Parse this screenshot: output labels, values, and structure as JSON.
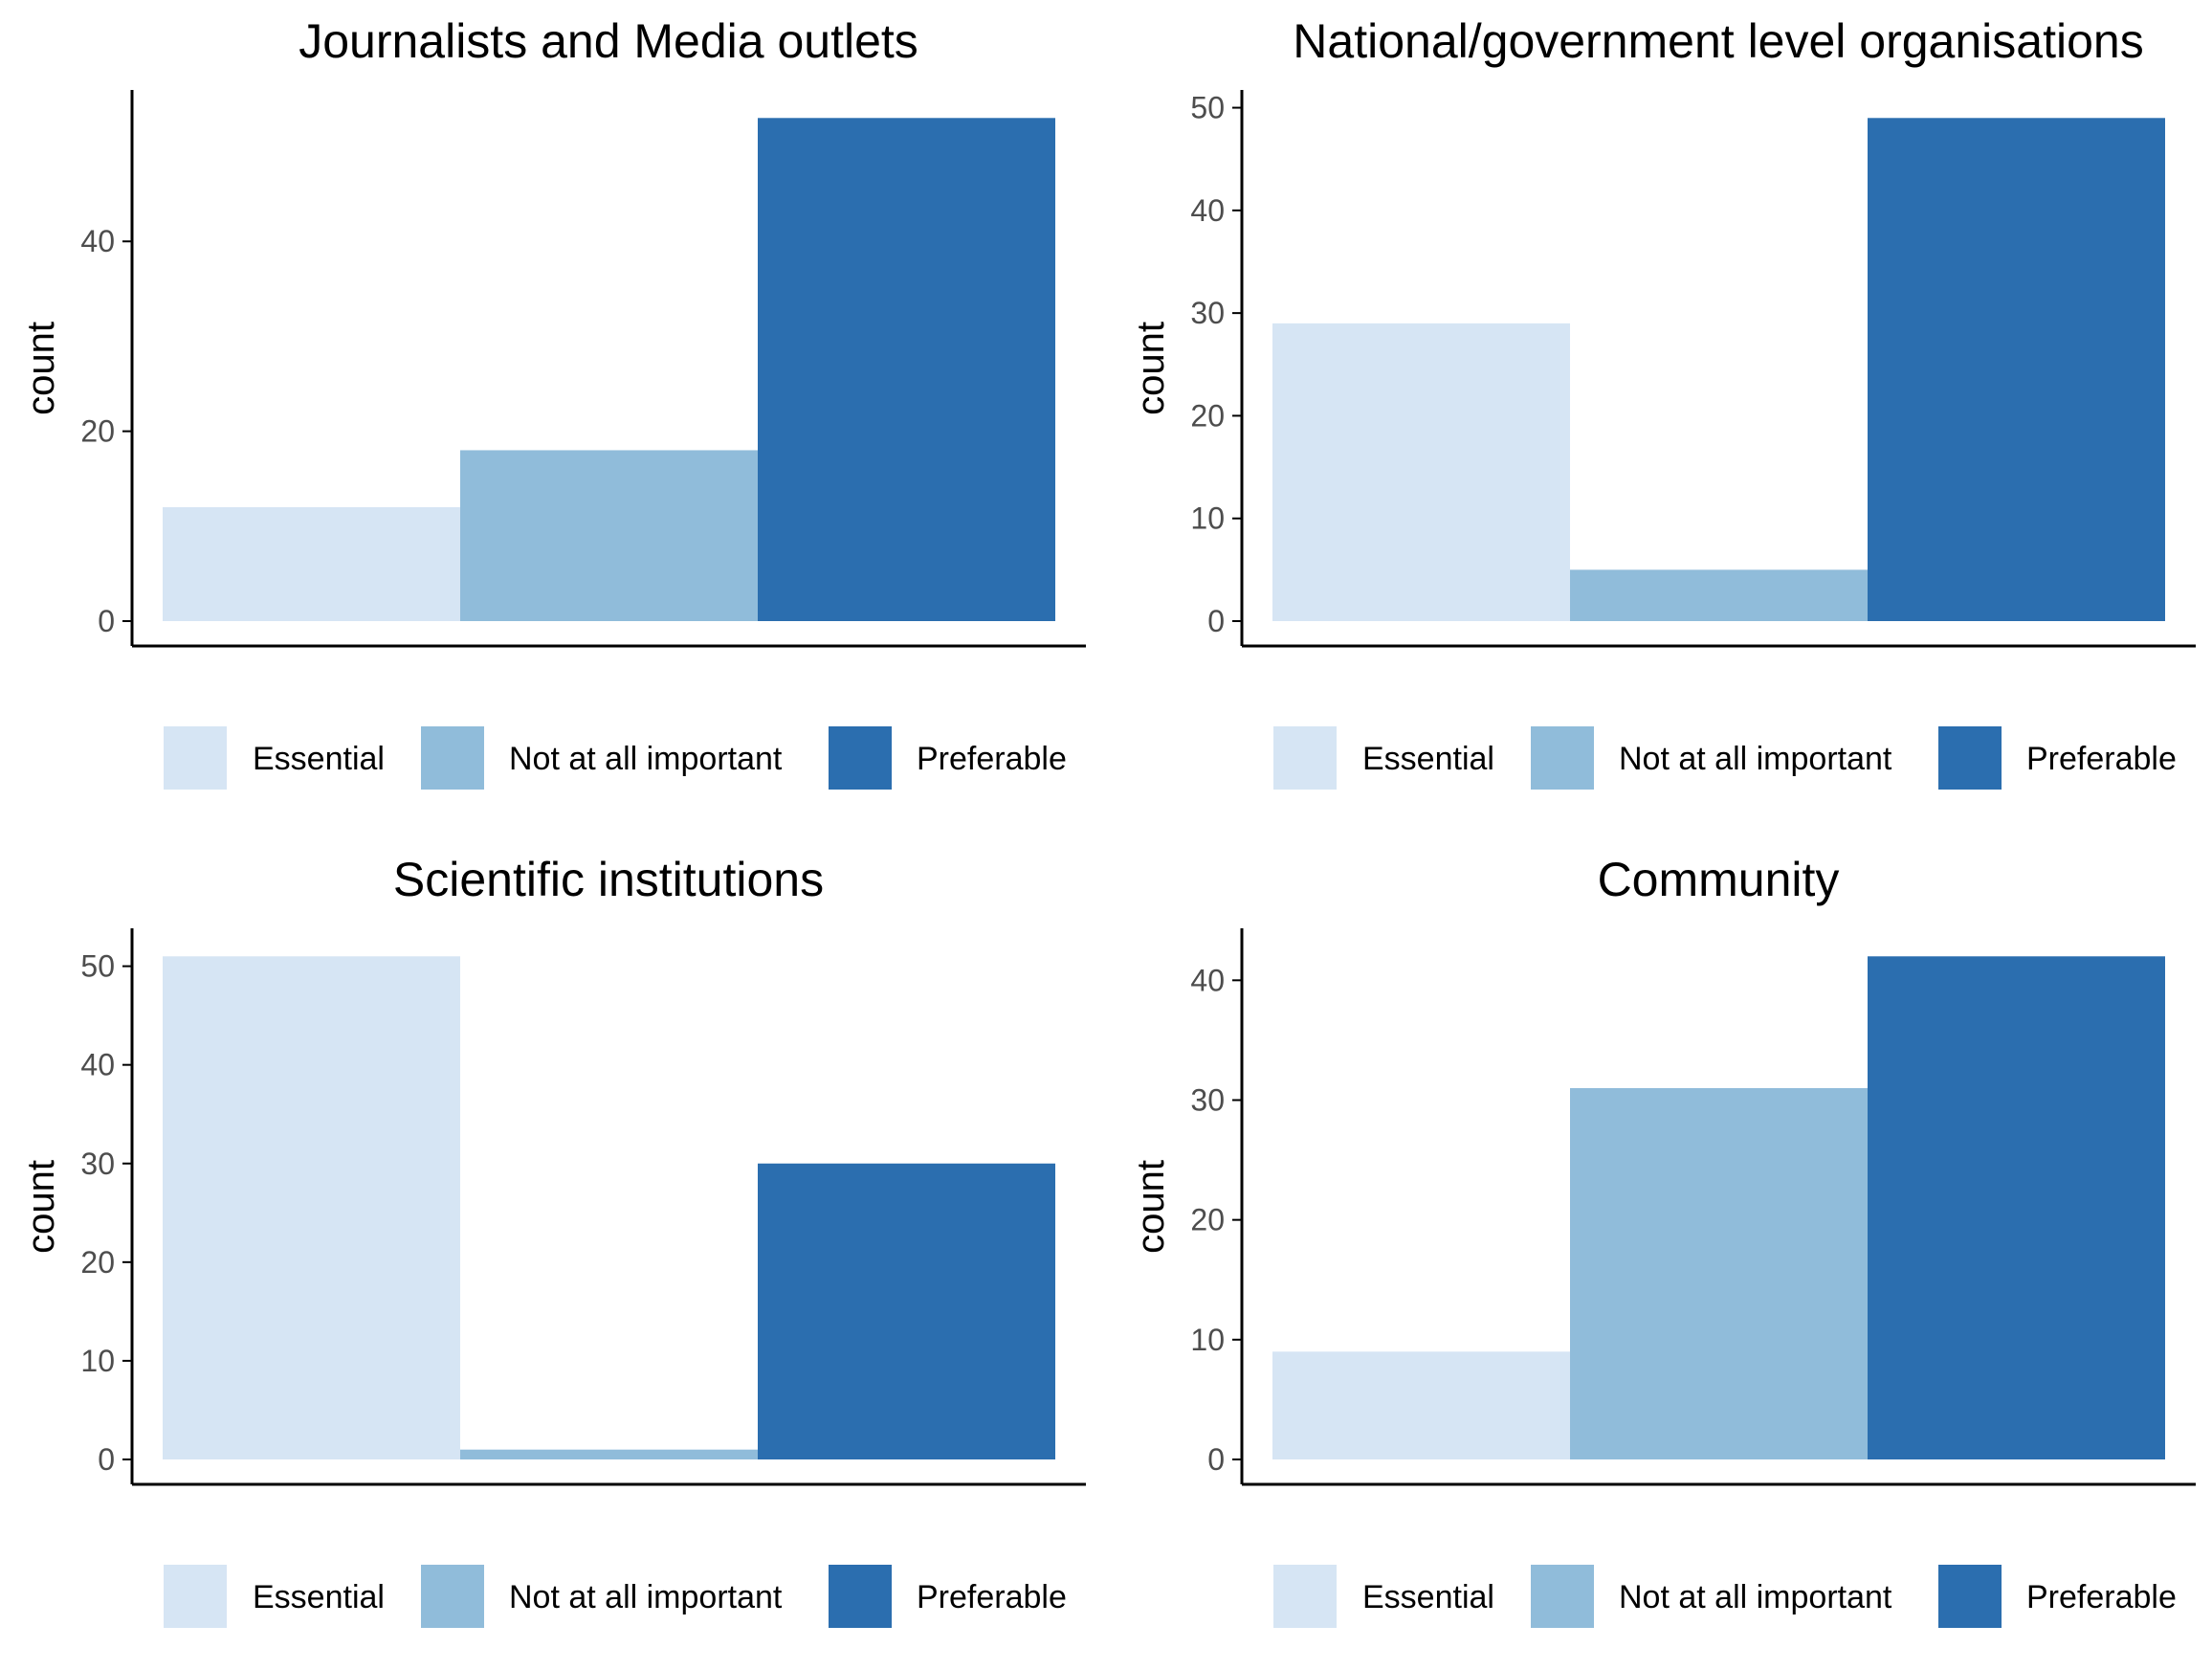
{
  "chart_data": [
    {
      "type": "bar",
      "title": "Journalists and Media outlets",
      "ylabel": "count",
      "xlabel": "",
      "categories": [
        "Essential",
        "Not at all important",
        "Preferable"
      ],
      "values": [
        12,
        18,
        53
      ],
      "ylim": [
        0,
        55.65
      ],
      "yticks": [
        0,
        20,
        40
      ],
      "grid": false,
      "legend_position": "bottom"
    },
    {
      "type": "bar",
      "title": "National/government level organisations",
      "ylabel": "count",
      "xlabel": "",
      "categories": [
        "Essential",
        "Not at all important",
        "Preferable"
      ],
      "values": [
        29,
        5,
        49
      ],
      "ylim": [
        0,
        51.45
      ],
      "yticks": [
        0,
        10,
        20,
        30,
        40,
        50
      ],
      "grid": false,
      "legend_position": "bottom"
    },
    {
      "type": "bar",
      "title": "Scientific institutions",
      "ylabel": "count",
      "xlabel": "",
      "categories": [
        "Essential",
        "Not at all important",
        "Preferable"
      ],
      "values": [
        51,
        1,
        30
      ],
      "ylim": [
        0,
        53.55
      ],
      "yticks": [
        0,
        10,
        20,
        30,
        40,
        50
      ],
      "grid": false,
      "legend_position": "bottom"
    },
    {
      "type": "bar",
      "title": "Community",
      "ylabel": "count",
      "xlabel": "",
      "categories": [
        "Essential",
        "Not at all important",
        "Preferable"
      ],
      "values": [
        9,
        31,
        42
      ],
      "ylim": [
        0,
        44.1
      ],
      "yticks": [
        0,
        10,
        20,
        30,
        40
      ],
      "grid": false,
      "legend_position": "bottom"
    }
  ],
  "colors": {
    "Essential": "#d6e5f4",
    "Not at all important": "#90bcda",
    "Preferable": "#2b6eaf",
    "axis": "#000000",
    "tick_text": "#4d4d4d"
  }
}
